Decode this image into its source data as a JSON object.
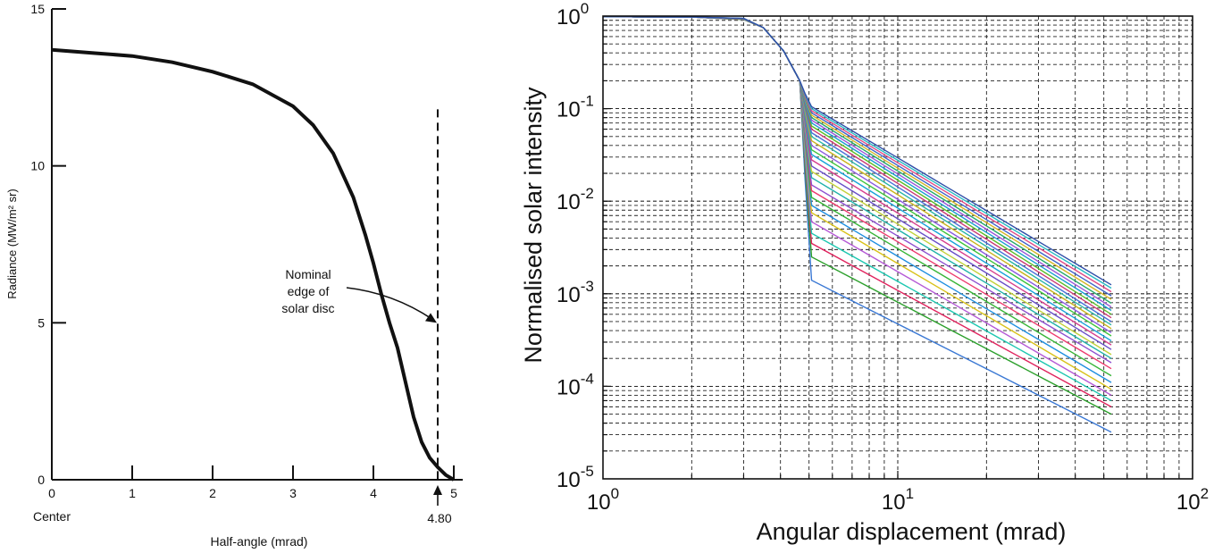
{
  "chart_data": [
    {
      "type": "line",
      "title": "",
      "xlabel": "Half-angle (mrad)",
      "ylabel": "Radiance (MW/m² sr)",
      "xlim": [
        0,
        5
      ],
      "ylim": [
        0,
        15
      ],
      "x_ticks": [
        "0",
        "1",
        "2",
        "3",
        "4",
        "5"
      ],
      "y_ticks": [
        "0",
        "5",
        "10",
        "15"
      ],
      "grid": false,
      "center_label": "Center",
      "series": [
        {
          "x": [
            0,
            0.5,
            1.0,
            1.5,
            2.0,
            2.5,
            3.0,
            3.25,
            3.5,
            3.75,
            3.9,
            4.0,
            4.1,
            4.2,
            4.3,
            4.4,
            4.5,
            4.6,
            4.7,
            4.8,
            4.9,
            5.0
          ],
          "y": [
            13.7,
            13.6,
            13.5,
            13.3,
            13.0,
            12.6,
            11.9,
            11.3,
            10.4,
            9.0,
            7.8,
            6.9,
            5.9,
            5.0,
            4.2,
            3.1,
            2.0,
            1.2,
            0.7,
            0.4,
            0.15,
            0
          ]
        }
      ],
      "annotations": {
        "edge_value": 4.8,
        "edge_label": "4.80",
        "edge_text": [
          "Nominal",
          "edge of",
          "solar disc"
        ]
      }
    },
    {
      "type": "line",
      "title": "",
      "xlabel": "Angular displacement (mrad)",
      "ylabel": "Normalised solar intensity",
      "x_scale": "log",
      "y_scale": "log",
      "xlim": [
        1,
        100
      ],
      "ylim": [
        1e-05,
        1
      ],
      "x_ticks": [
        {
          "base": "10",
          "exp": "0"
        },
        {
          "base": "10",
          "exp": "1"
        },
        {
          "base": "10",
          "exp": "2"
        }
      ],
      "y_ticks": [
        {
          "base": "10",
          "exp": "0"
        },
        {
          "base": "10",
          "exp": "-1"
        },
        {
          "base": "10",
          "exp": "-2"
        },
        {
          "base": "10",
          "exp": "-3"
        },
        {
          "base": "10",
          "exp": "-4"
        },
        {
          "base": "10",
          "exp": "-5"
        }
      ],
      "grid": true,
      "legend": "none",
      "series_note_count": 60,
      "profile_shape": {
        "flat_until_mrad": 3.0,
        "knee_mrad": 4.65,
        "value_at_knee": 0.2,
        "end_mrad": 53
      },
      "series_end_values_at_53_mrad": [
        3.2e-05,
        5e-05,
        6e-05,
        7e-05,
        8e-05,
        9.29e-05,
        0.00011,
        0.00013,
        0.000155,
        0.00018,
        0.0002,
        0.00022,
        0.00025,
        0.00028,
        0.00031,
        0.00035,
        0.00038,
        0.00042,
        0.00046,
        0.0005,
        0.00055,
        0.0006,
        0.00066,
        0.00072,
        0.00079,
        0.00087,
        0.00095,
        0.00105,
        0.00115,
        0.00125
      ],
      "series_start_values_at_5_mrad": [
        0.0014,
        0.0025,
        0.0035,
        0.0045,
        0.006,
        0.0075,
        0.009,
        0.011,
        0.013,
        0.015,
        0.018,
        0.021,
        0.024,
        0.028,
        0.032,
        0.036,
        0.04,
        0.045,
        0.05,
        0.055,
        0.06,
        0.065,
        0.07,
        0.075,
        0.08,
        0.085,
        0.09,
        0.095,
        0.1,
        0.105
      ],
      "colors": [
        "#3a78d4",
        "#2ca02c",
        "#e0245e",
        "#1cc7b0",
        "#b55ad6",
        "#d9c21a",
        "#1f8fe0",
        "#38b538",
        "#ee3b6f",
        "#8f4fd0",
        "#20b2aa",
        "#c2d13a",
        "#6a4fc8",
        "#d6408f",
        "#19a3d9",
        "#3ec43e",
        "#8c5ae0",
        "#c9b31c",
        "#2bb6a6",
        "#4b72d8",
        "#cc3a74",
        "#5cbd2a",
        "#1a9ed0",
        "#9a56d8",
        "#26a96b",
        "#d4b527",
        "#3f64c8",
        "#e04a86",
        "#27b9c4",
        "#2f4fa8"
      ]
    }
  ]
}
